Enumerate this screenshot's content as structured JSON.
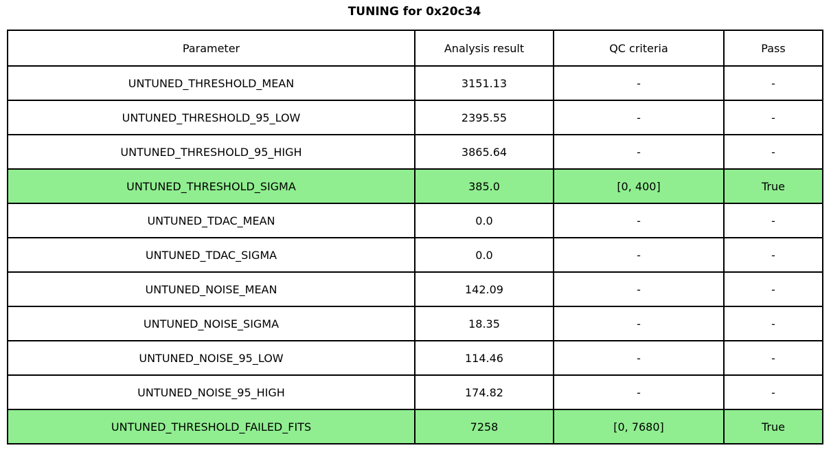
{
  "chart_data": {
    "type": "table",
    "title": "TUNING for 0x20c34",
    "columns": [
      "Parameter",
      "Analysis result",
      "QC criteria",
      "Pass"
    ],
    "rows": [
      [
        "UNTUNED_THRESHOLD_MEAN",
        "3151.13",
        "-",
        "-"
      ],
      [
        "UNTUNED_THRESHOLD_95_LOW",
        "2395.55",
        "-",
        "-"
      ],
      [
        "UNTUNED_THRESHOLD_95_HIGH",
        "3865.64",
        "-",
        "-"
      ],
      [
        "UNTUNED_THRESHOLD_SIGMA",
        "385.0",
        "[0, 400]",
        "True"
      ],
      [
        "UNTUNED_TDAC_MEAN",
        "0.0",
        "-",
        "-"
      ],
      [
        "UNTUNED_TDAC_SIGMA",
        "0.0",
        "-",
        "-"
      ],
      [
        "UNTUNED_NOISE_MEAN",
        "142.09",
        "-",
        "-"
      ],
      [
        "UNTUNED_NOISE_SIGMA",
        "18.35",
        "-",
        "-"
      ],
      [
        "UNTUNED_NOISE_95_LOW",
        "114.46",
        "-",
        "-"
      ],
      [
        "UNTUNED_NOISE_95_HIGH",
        "174.82",
        "-",
        "-"
      ],
      [
        "UNTUNED_THRESHOLD_FAILED_FITS",
        "7258",
        "[0, 7680]",
        "True"
      ]
    ],
    "highlighted_rows": [
      3,
      10
    ],
    "highlight_color": "#90EE90",
    "colors": {
      "border": "#000000",
      "text": "#000000",
      "background": "#FFFFFF"
    },
    "layout": {
      "grid": "full-borders",
      "title_position": "top-center"
    }
  }
}
